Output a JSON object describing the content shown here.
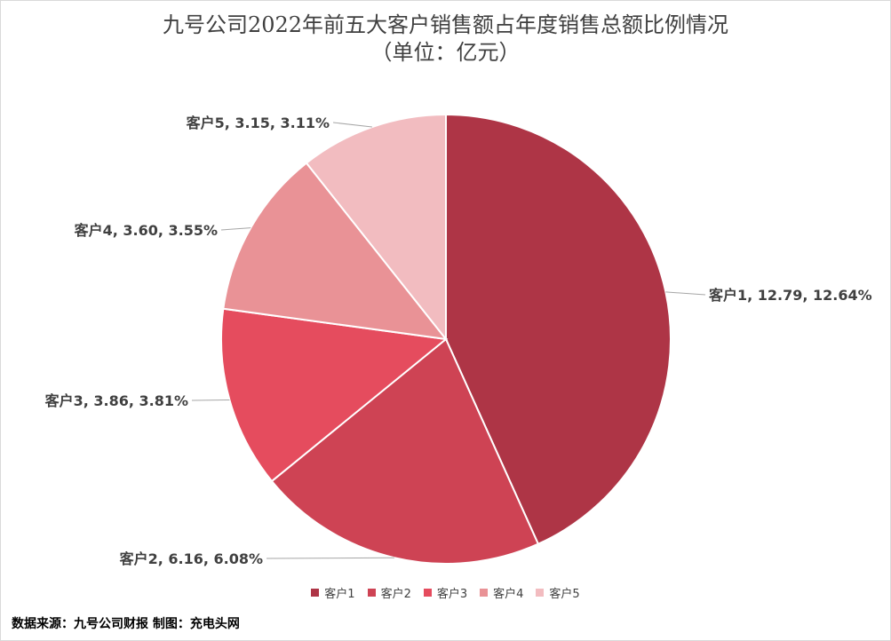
{
  "chart_data": {
    "type": "pie",
    "title": "九号公司2022年前五大客户销售额占年度销售总额比例情况",
    "subtitle": "（单位：亿元）",
    "categories": [
      "客户1",
      "客户2",
      "客户3",
      "客户4",
      "客户5"
    ],
    "values": [
      12.79,
      6.16,
      3.86,
      3.6,
      3.15
    ],
    "percent_labels": [
      "12.64%",
      "6.08%",
      "3.81%",
      "3.55%",
      "3.11%"
    ],
    "data_labels": [
      "客户1, 12.79, 12.64%",
      "客户2, 6.16, 6.08%",
      "客户3, 3.86, 3.81%",
      "客户4, 3.60, 3.55%",
      "客户5, 3.15, 3.11%"
    ],
    "colors": [
      "#ae3546",
      "#ce4354",
      "#e54c5e",
      "#e99296",
      "#f2bcc0"
    ],
    "legend_position": "bottom",
    "start_angle": "12 o'clock, clockwise"
  },
  "footer": {
    "source_note": "数据来源：九号公司财报  制图：充电头网"
  }
}
